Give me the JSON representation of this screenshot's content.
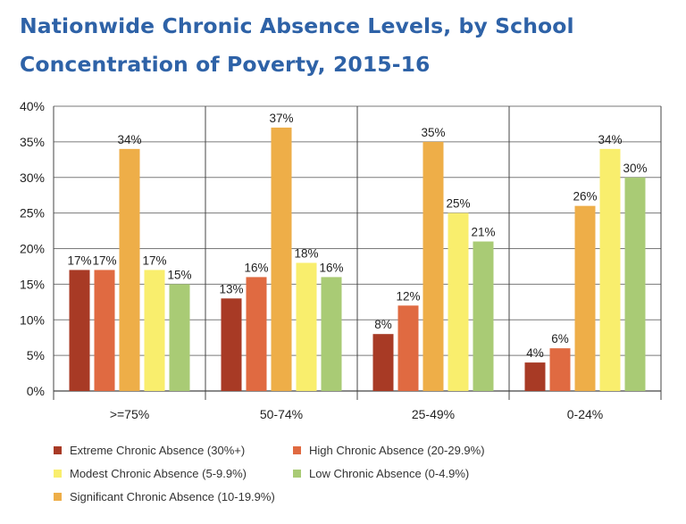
{
  "title": "Nationwide Chronic Absence Levels, by School Concentration of Poverty, 2015-16",
  "colors": {
    "extreme": "#a83a25",
    "high": "#e06a41",
    "modest": "#f9ee6d",
    "low": "#a9cb75",
    "significant": "#eeae48",
    "grid": "#7a7a7a",
    "axis": "#444444"
  },
  "chart_data": {
    "type": "bar",
    "title": "Nationwide Chronic Absence Levels, by School Concentration of Poverty, 2015-16",
    "categories": [
      ">=75%",
      "50-74%",
      "25-49%",
      "0-24%"
    ],
    "y_ticks": [
      "0%",
      "5%",
      "10%",
      "15%",
      "20%",
      "25%",
      "30%",
      "35%",
      "40%"
    ],
    "ylim": [
      0,
      40
    ],
    "grid": true,
    "legend_position": "bottom",
    "series": [
      {
        "key": "extreme",
        "name": "Extreme Chronic Absence (30%+)",
        "values": [
          17,
          13,
          8,
          4
        ],
        "labels": [
          "17%",
          "13%",
          "8%",
          "4%"
        ]
      },
      {
        "key": "high",
        "name": "High Chronic Absence (20-29.9%)",
        "values": [
          17,
          16,
          12,
          6
        ],
        "labels": [
          "17%",
          "16%",
          "12%",
          "6%"
        ]
      },
      {
        "key": "significant",
        "name": "Significant Chronic Absence (10-19.9%)",
        "values": [
          34,
          37,
          35,
          26
        ],
        "labels": [
          "34%",
          "37%",
          "35%",
          "26%"
        ]
      },
      {
        "key": "modest",
        "name": "Modest Chronic Absence (5-9.9%)",
        "values": [
          17,
          18,
          25,
          34
        ],
        "labels": [
          "17%",
          "18%",
          "25%",
          "34%"
        ]
      },
      {
        "key": "low",
        "name": "Low Chronic Absence (0-4.9%)",
        "values": [
          15,
          16,
          21,
          30
        ],
        "labels": [
          "15%",
          "16%",
          "21%",
          "30%"
        ]
      }
    ]
  }
}
